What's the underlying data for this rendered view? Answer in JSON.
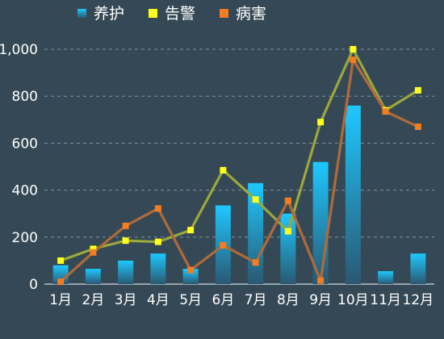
{
  "chart_data": {
    "type": "bar",
    "categories": [
      "1月",
      "2月",
      "3月",
      "4月",
      "5月",
      "6月",
      "7月",
      "8月",
      "9月",
      "10月",
      "11月",
      "12月"
    ],
    "series": [
      {
        "name": "养护",
        "kind": "bar",
        "color": "#1ec8ff",
        "values": [
          80,
          65,
          100,
          130,
          65,
          335,
          430,
          300,
          520,
          760,
          55,
          130
        ]
      },
      {
        "name": "告警",
        "kind": "line",
        "color": "#9aa83c",
        "marker_color": "#ffff1a",
        "values": [
          100,
          150,
          185,
          180,
          230,
          485,
          360,
          225,
          690,
          1000,
          740,
          825
        ]
      },
      {
        "name": "病害",
        "kind": "line",
        "color": "#b06a3a",
        "marker_color": "#f57c1f",
        "values": [
          10,
          135,
          248,
          322,
          60,
          165,
          92,
          355,
          15,
          955,
          735,
          670
        ]
      }
    ],
    "ylim": [
      0,
      1000
    ],
    "yticks": [
      "0",
      "200",
      "400",
      "600",
      "800",
      "1,000"
    ],
    "ytick_values": [
      0,
      200,
      400,
      600,
      800,
      1000
    ],
    "grid": "dashed-horizontal",
    "legend": "top-left"
  }
}
